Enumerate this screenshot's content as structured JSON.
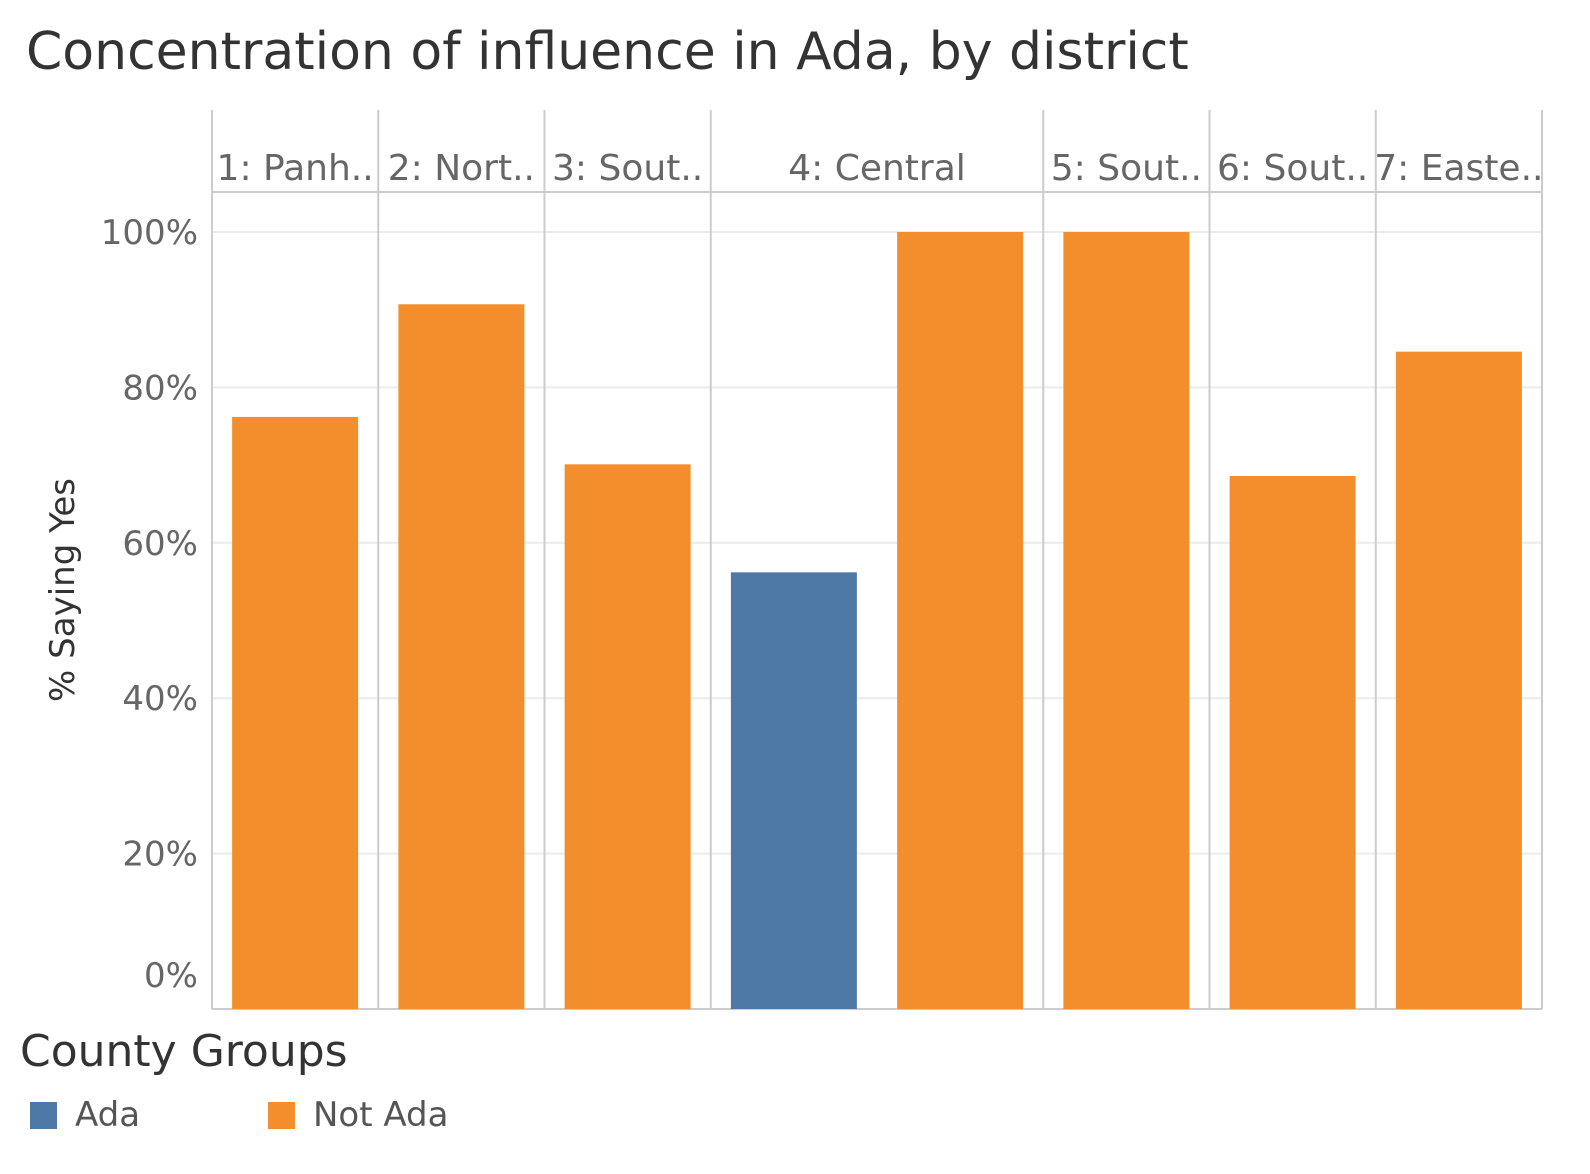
{
  "chart_data": {
    "type": "bar",
    "title": "Concentration of influence in Ada, by district",
    "ylabel": "% Saying Yes",
    "xlabel": "",
    "ylim": [
      0,
      1.05
    ],
    "yticks": [
      "0%",
      "20%",
      "40%",
      "60%",
      "80%",
      "100%"
    ],
    "ytick_values": [
      0,
      0.2,
      0.4,
      0.6,
      0.8,
      1.0
    ],
    "grid": true,
    "legend_position": "bottom-left",
    "districts": [
      {
        "label": "1: Panh..",
        "bars": [
          {
            "group": "Not Ada",
            "value": 0.762
          }
        ]
      },
      {
        "label": "2: Nort..",
        "bars": [
          {
            "group": "Not Ada",
            "value": 0.907
          }
        ]
      },
      {
        "label": "3: Sout..",
        "bars": [
          {
            "group": "Not Ada",
            "value": 0.701
          }
        ]
      },
      {
        "label": "4: Central",
        "bars": [
          {
            "group": "Ada",
            "value": 0.562
          },
          {
            "group": "Not Ada",
            "value": 1.0
          }
        ]
      },
      {
        "label": "5: Sout..",
        "bars": [
          {
            "group": "Not Ada",
            "value": 1.0
          }
        ]
      },
      {
        "label": "6: Sout..",
        "bars": [
          {
            "group": "Not Ada",
            "value": 0.686
          }
        ]
      },
      {
        "label": "7: Easte..",
        "bars": [
          {
            "group": "Not Ada",
            "value": 0.846
          }
        ]
      }
    ],
    "legend": {
      "title": "County Groups",
      "items": [
        {
          "label": "Ada",
          "color": "#4e79a7"
        },
        {
          "label": "Not Ada",
          "color": "#f28e2b"
        }
      ]
    }
  }
}
